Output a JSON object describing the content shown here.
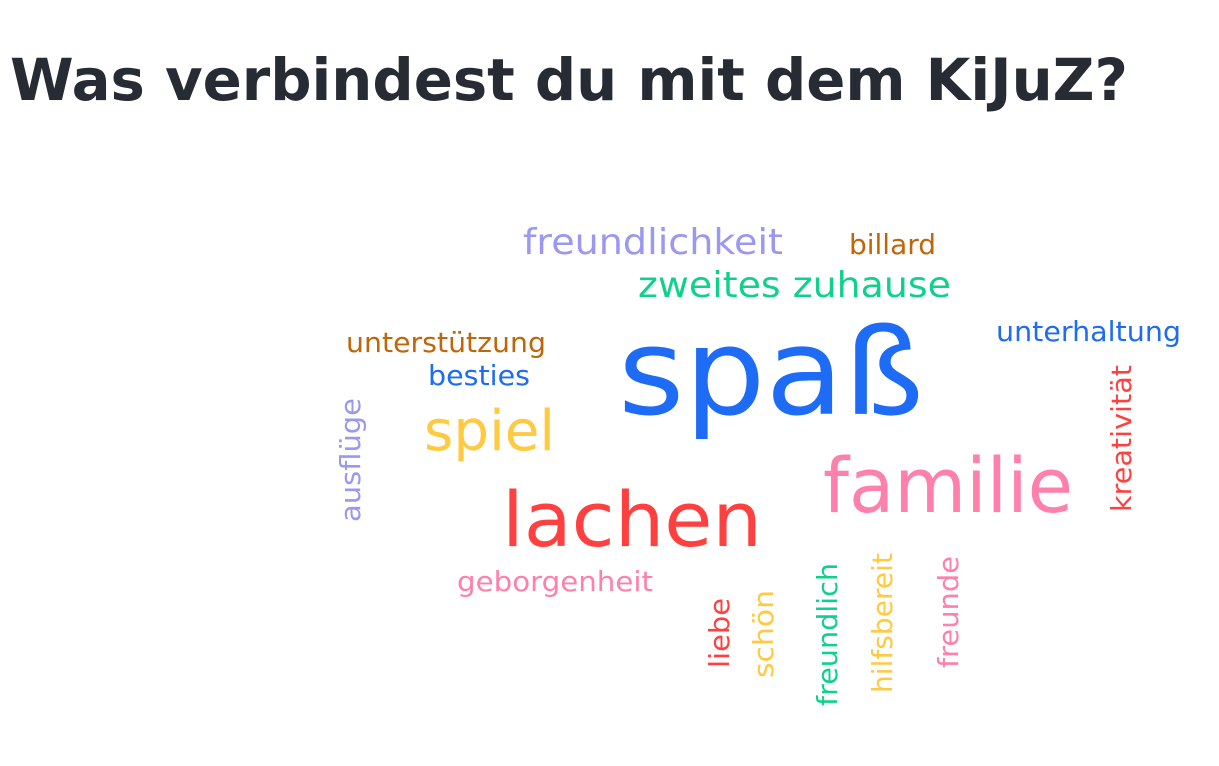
{
  "header": {
    "title": "Was verbindest du mit dem KiJuZ?"
  },
  "word_cloud": {
    "words": [
      "freundlichkeit",
      "billard",
      "zweites zuhause",
      "unterhaltung",
      "unterstützung",
      "besties",
      "spaß",
      "spiel",
      "familie",
      "lachen",
      "geborgenheit",
      "ausflüge",
      "kreativität",
      "liebe",
      "schön",
      "freundlich",
      "hilfsbereit",
      "freunde"
    ]
  }
}
